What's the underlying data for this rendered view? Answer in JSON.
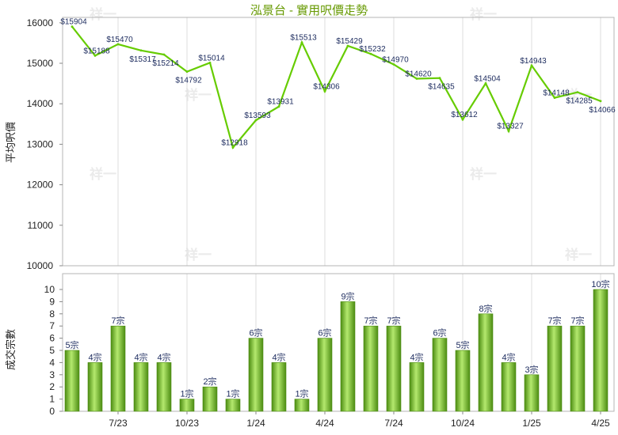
{
  "title": "泓景台 - 實用呎價走勢",
  "watermark": "祥一",
  "colors": {
    "title": "#669900",
    "line": "#66cc00",
    "bar_edge": "#4c8c12",
    "bar_center": "#b4e96e",
    "value_label": "#1c2b5e",
    "grid": "#dedede",
    "frame": "#b4b4b4"
  },
  "chart_data": [
    {
      "type": "line",
      "ylabel": "平均呎價",
      "ylim": [
        10000,
        16000
      ],
      "yticks": [
        10000,
        11000,
        12000,
        13000,
        14000,
        15000,
        16000
      ],
      "label_prefix": "$",
      "values": [
        15904,
        15188,
        15470,
        15317,
        15214,
        14792,
        15014,
        12918,
        13593,
        13931,
        15513,
        14306,
        15429,
        15232,
        14970,
        14620,
        14635,
        13612,
        14504,
        13327,
        14943,
        14148,
        14285,
        14066
      ],
      "grid": "vertical"
    },
    {
      "type": "bar",
      "ylabel": "成交宗數",
      "ylim": [
        0,
        10
      ],
      "yticks": [
        0,
        1,
        2,
        3,
        4,
        5,
        6,
        7,
        8,
        9,
        10
      ],
      "label_suffix": "宗",
      "categories": [
        "",
        "",
        "7/23",
        "",
        "",
        "10/23",
        "",
        "",
        "1/24",
        "",
        "",
        "4/24",
        "",
        "",
        "7/24",
        "",
        "",
        "10/24",
        "",
        "",
        "1/25",
        "",
        "",
        "4/25"
      ],
      "values": [
        5,
        4,
        7,
        4,
        4,
        1,
        2,
        1,
        6,
        4,
        1,
        6,
        9,
        7,
        7,
        4,
        6,
        5,
        8,
        4,
        3,
        7,
        7,
        10
      ],
      "grid": "vertical"
    }
  ]
}
